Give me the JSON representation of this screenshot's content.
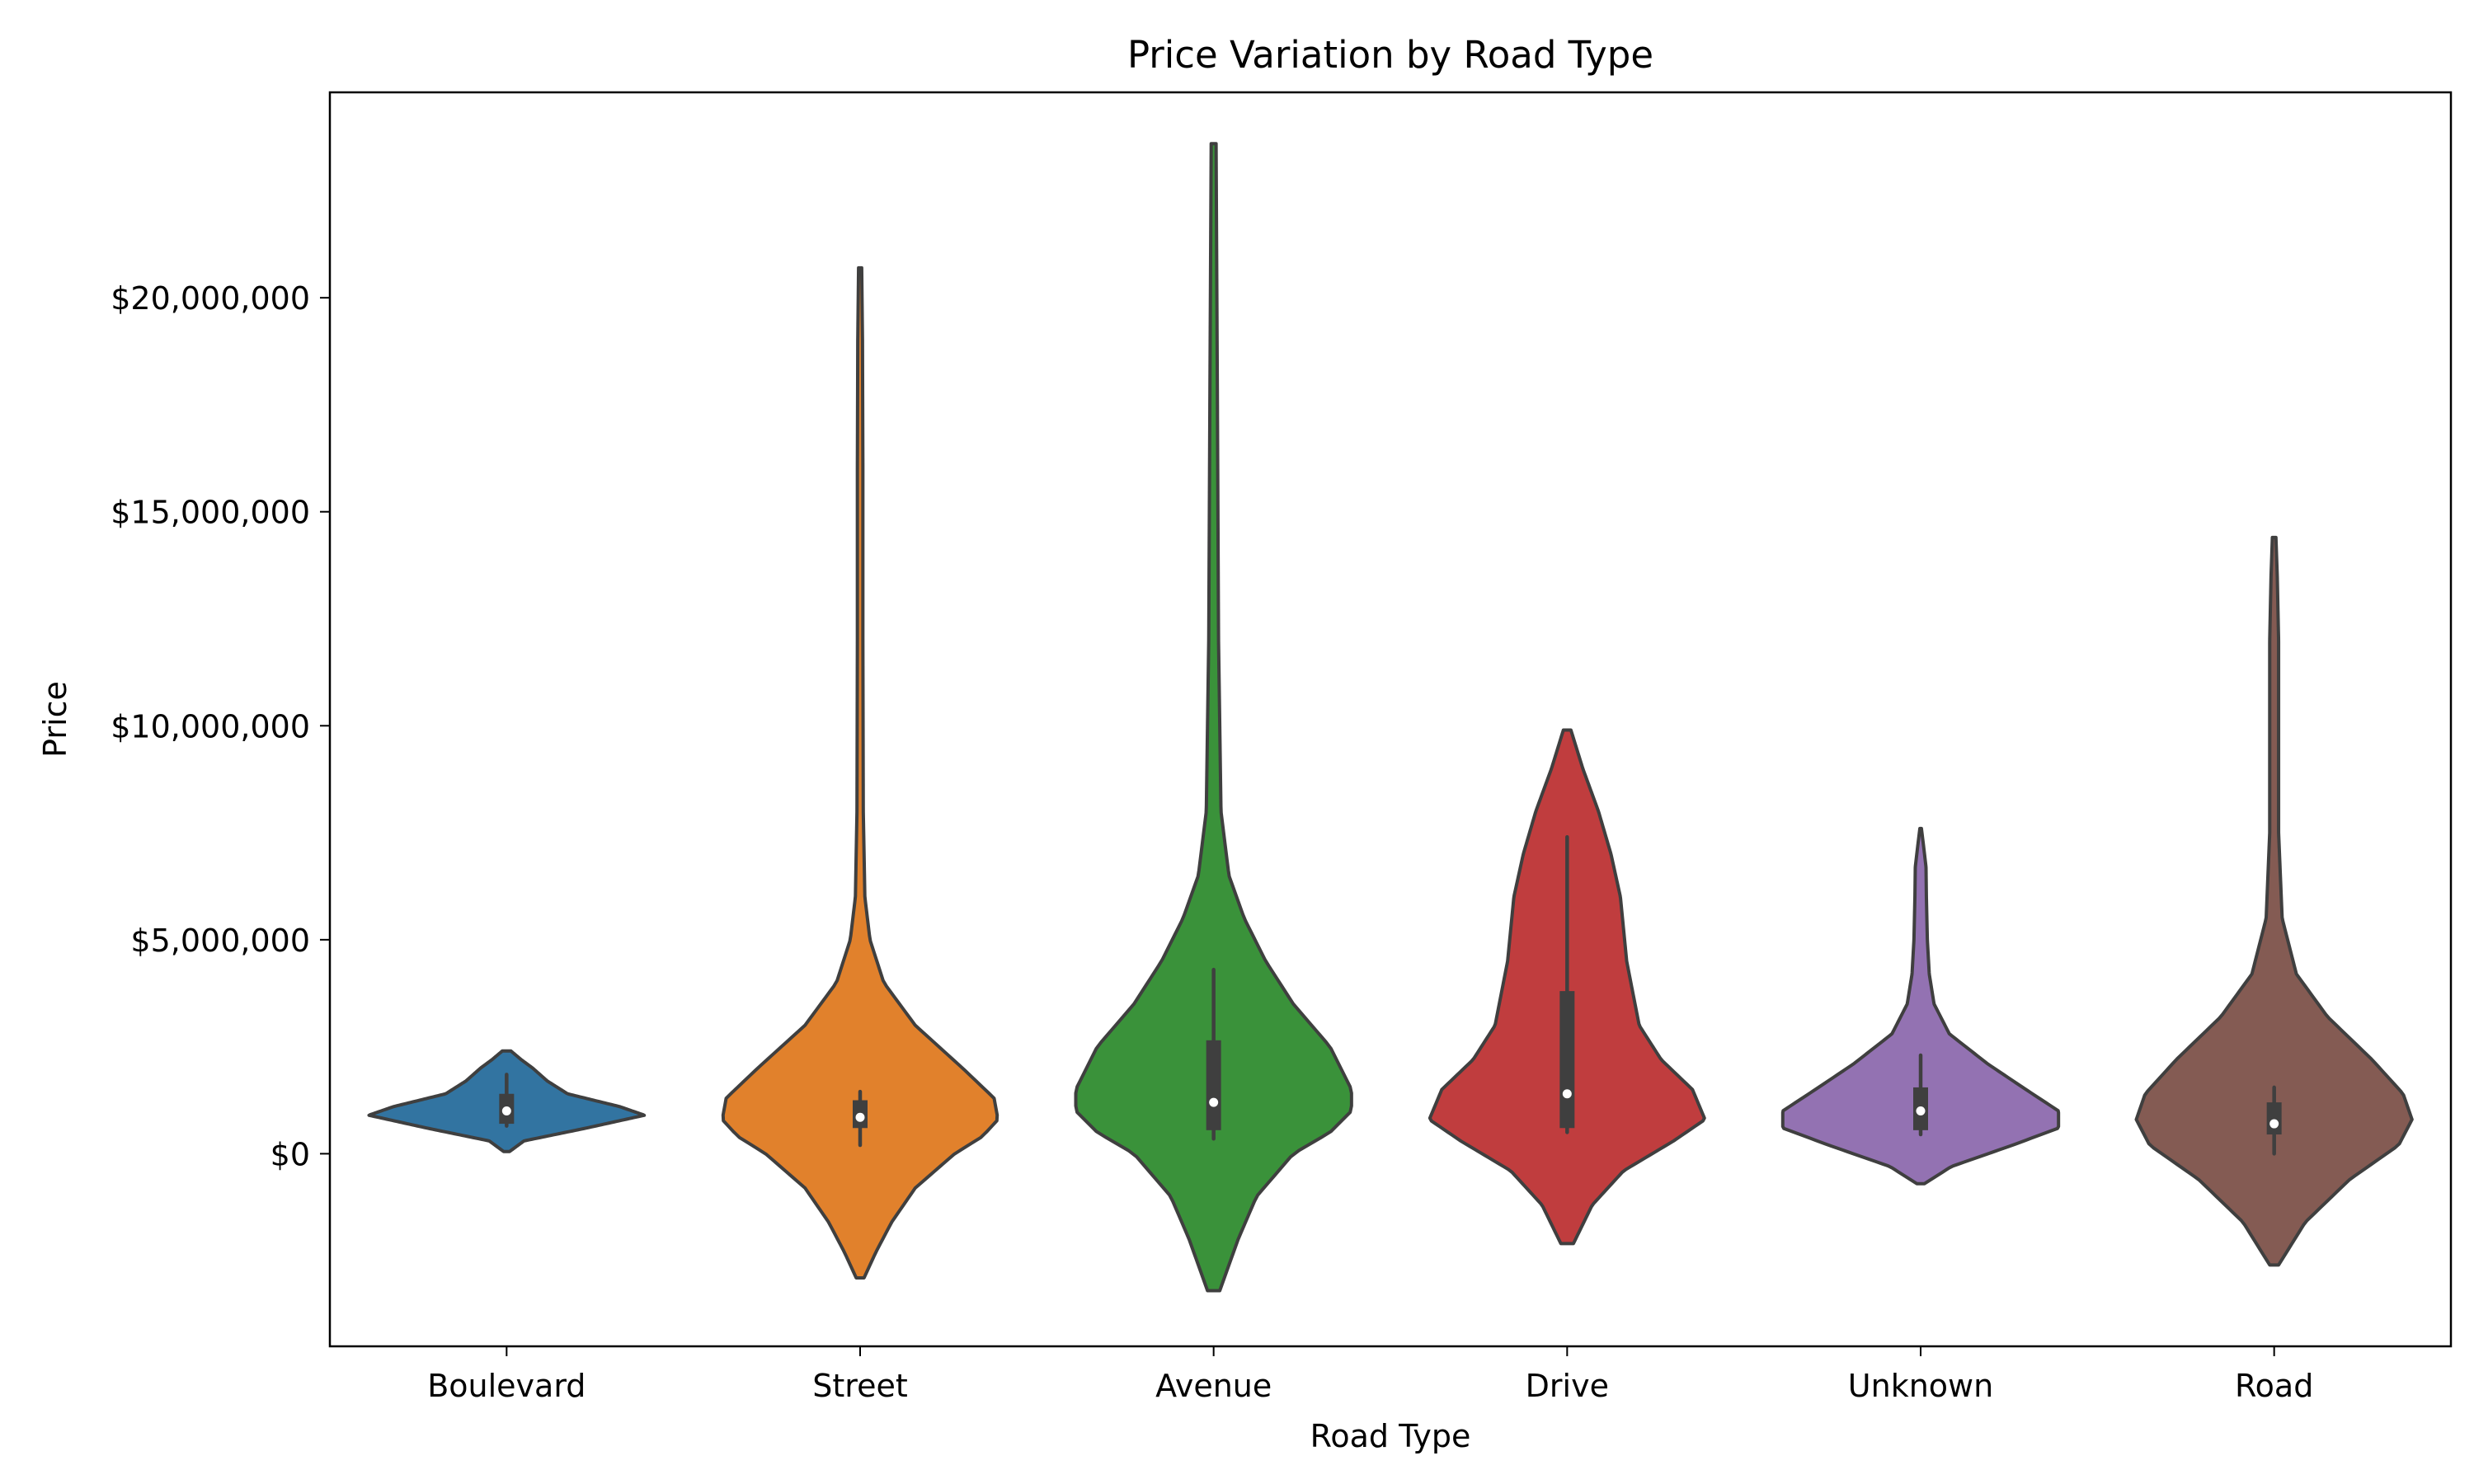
{
  "chart_data": {
    "type": "violin",
    "title": "Price Variation by Road Type",
    "xlabel": "Road Type",
    "ylabel": "Price",
    "categories": [
      "Boulevard",
      "Street",
      "Avenue",
      "Drive",
      "Unknown",
      "Road"
    ],
    "ylim": [
      -4500000,
      24800000
    ],
    "yticks": [
      0,
      5000000,
      10000000,
      15000000,
      20000000
    ],
    "ytick_labels": [
      "$0",
      "$5,000,000",
      "$10,000,000",
      "$15,000,000",
      "$20,000,000"
    ],
    "grid": false,
    "legend": "none",
    "series": [
      {
        "category": "Boulevard",
        "color": "#3274a1",
        "min_kde": 50000,
        "max_kde": 2400000,
        "median": 1000000,
        "q1": 700000,
        "q3": 1400000,
        "whisker_low": 650000,
        "whisker_high": 1850000,
        "density": [
          [
            50000,
            0.02
          ],
          [
            300000,
            0.12
          ],
          [
            600000,
            0.55
          ],
          [
            900000,
            0.95
          ],
          [
            1100000,
            0.78
          ],
          [
            1400000,
            0.42
          ],
          [
            1700000,
            0.28
          ],
          [
            2000000,
            0.18
          ],
          [
            2200000,
            0.1
          ],
          [
            2400000,
            0.03
          ]
        ]
      },
      {
        "category": "Street",
        "color": "#e1812c",
        "min_kde": -2900000,
        "max_kde": 20700000,
        "median": 850000,
        "q1": 600000,
        "q3": 1250000,
        "whisker_low": 200000,
        "whisker_high": 1450000,
        "density": [
          [
            -2900000,
            0.01
          ],
          [
            -2300000,
            0.04
          ],
          [
            -1600000,
            0.08
          ],
          [
            -800000,
            0.14
          ],
          [
            0,
            0.24
          ],
          [
            400000,
            0.31
          ],
          [
            800000,
            0.35
          ],
          [
            1300000,
            0.34
          ],
          [
            2000000,
            0.26
          ],
          [
            3000000,
            0.14
          ],
          [
            4000000,
            0.06
          ],
          [
            5000000,
            0.025
          ],
          [
            6000000,
            0.012
          ],
          [
            8000000,
            0.008
          ],
          [
            12000000,
            0.007
          ],
          [
            16000000,
            0.007
          ],
          [
            19000000,
            0.006
          ],
          [
            20700000,
            0.004
          ]
        ]
      },
      {
        "category": "Avenue",
        "color": "#3a923a",
        "min_kde": -3200000,
        "max_kde": 23600000,
        "median": 1200000,
        "q1": 550000,
        "q3": 2650000,
        "whisker_low": 350000,
        "whisker_high": 4300000,
        "density": [
          [
            -3200000,
            0.01
          ],
          [
            -2000000,
            0.04
          ],
          [
            -1000000,
            0.07
          ],
          [
            0,
            0.13
          ],
          [
            500000,
            0.19
          ],
          [
            1000000,
            0.225
          ],
          [
            1500000,
            0.225
          ],
          [
            2500000,
            0.19
          ],
          [
            3500000,
            0.13
          ],
          [
            4500000,
            0.085
          ],
          [
            5500000,
            0.05
          ],
          [
            6500000,
            0.025
          ],
          [
            8000000,
            0.012
          ],
          [
            12000000,
            0.008
          ],
          [
            18000000,
            0.006
          ],
          [
            23600000,
            0.004
          ]
        ]
      },
      {
        "category": "Drive",
        "color": "#c03d3e",
        "min_kde": -2100000,
        "max_kde": 9900000,
        "median": 1400000,
        "q1": 600000,
        "q3": 3800000,
        "whisker_low": 500000,
        "whisker_high": 7400000,
        "density": [
          [
            -2100000,
            0.01
          ],
          [
            -1200000,
            0.04
          ],
          [
            -400000,
            0.09
          ],
          [
            300000,
            0.17
          ],
          [
            800000,
            0.22
          ],
          [
            1500000,
            0.2
          ],
          [
            2200000,
            0.15
          ],
          [
            3000000,
            0.115
          ],
          [
            4500000,
            0.095
          ],
          [
            6000000,
            0.085
          ],
          [
            7000000,
            0.07
          ],
          [
            8000000,
            0.05
          ],
          [
            9000000,
            0.025
          ],
          [
            9900000,
            0.006
          ]
        ]
      },
      {
        "category": "Unknown",
        "color": "#9372b2",
        "min_kde": -700000,
        "max_kde": 7600000,
        "median": 1000000,
        "q1": 550000,
        "q3": 1550000,
        "whisker_low": 450000,
        "whisker_high": 2300000,
        "density": [
          [
            -700000,
            0.02
          ],
          [
            -300000,
            0.16
          ],
          [
            200000,
            0.48
          ],
          [
            600000,
            0.72
          ],
          [
            1000000,
            0.72
          ],
          [
            1500000,
            0.55
          ],
          [
            2100000,
            0.35
          ],
          [
            2800000,
            0.15
          ],
          [
            3500000,
            0.07
          ],
          [
            4200000,
            0.045
          ],
          [
            5000000,
            0.035
          ],
          [
            6000000,
            0.03
          ],
          [
            6700000,
            0.028
          ],
          [
            7200000,
            0.015
          ],
          [
            7600000,
            0.004
          ]
        ]
      },
      {
        "category": "Road",
        "color": "#845b53",
        "min_kde": -2600000,
        "max_kde": 14400000,
        "median": 700000,
        "q1": 450000,
        "q3": 1200000,
        "whisker_low": 0,
        "whisker_high": 1550000,
        "density": [
          [
            -2600000,
            0.01
          ],
          [
            -1600000,
            0.07
          ],
          [
            -600000,
            0.17
          ],
          [
            200000,
            0.28
          ],
          [
            800000,
            0.31
          ],
          [
            1400000,
            0.29
          ],
          [
            2200000,
            0.22
          ],
          [
            3200000,
            0.12
          ],
          [
            4200000,
            0.05
          ],
          [
            5500000,
            0.018
          ],
          [
            7500000,
            0.01
          ],
          [
            10000000,
            0.01
          ],
          [
            12000000,
            0.01
          ],
          [
            13500000,
            0.007
          ],
          [
            14400000,
            0.004
          ]
        ]
      }
    ]
  }
}
